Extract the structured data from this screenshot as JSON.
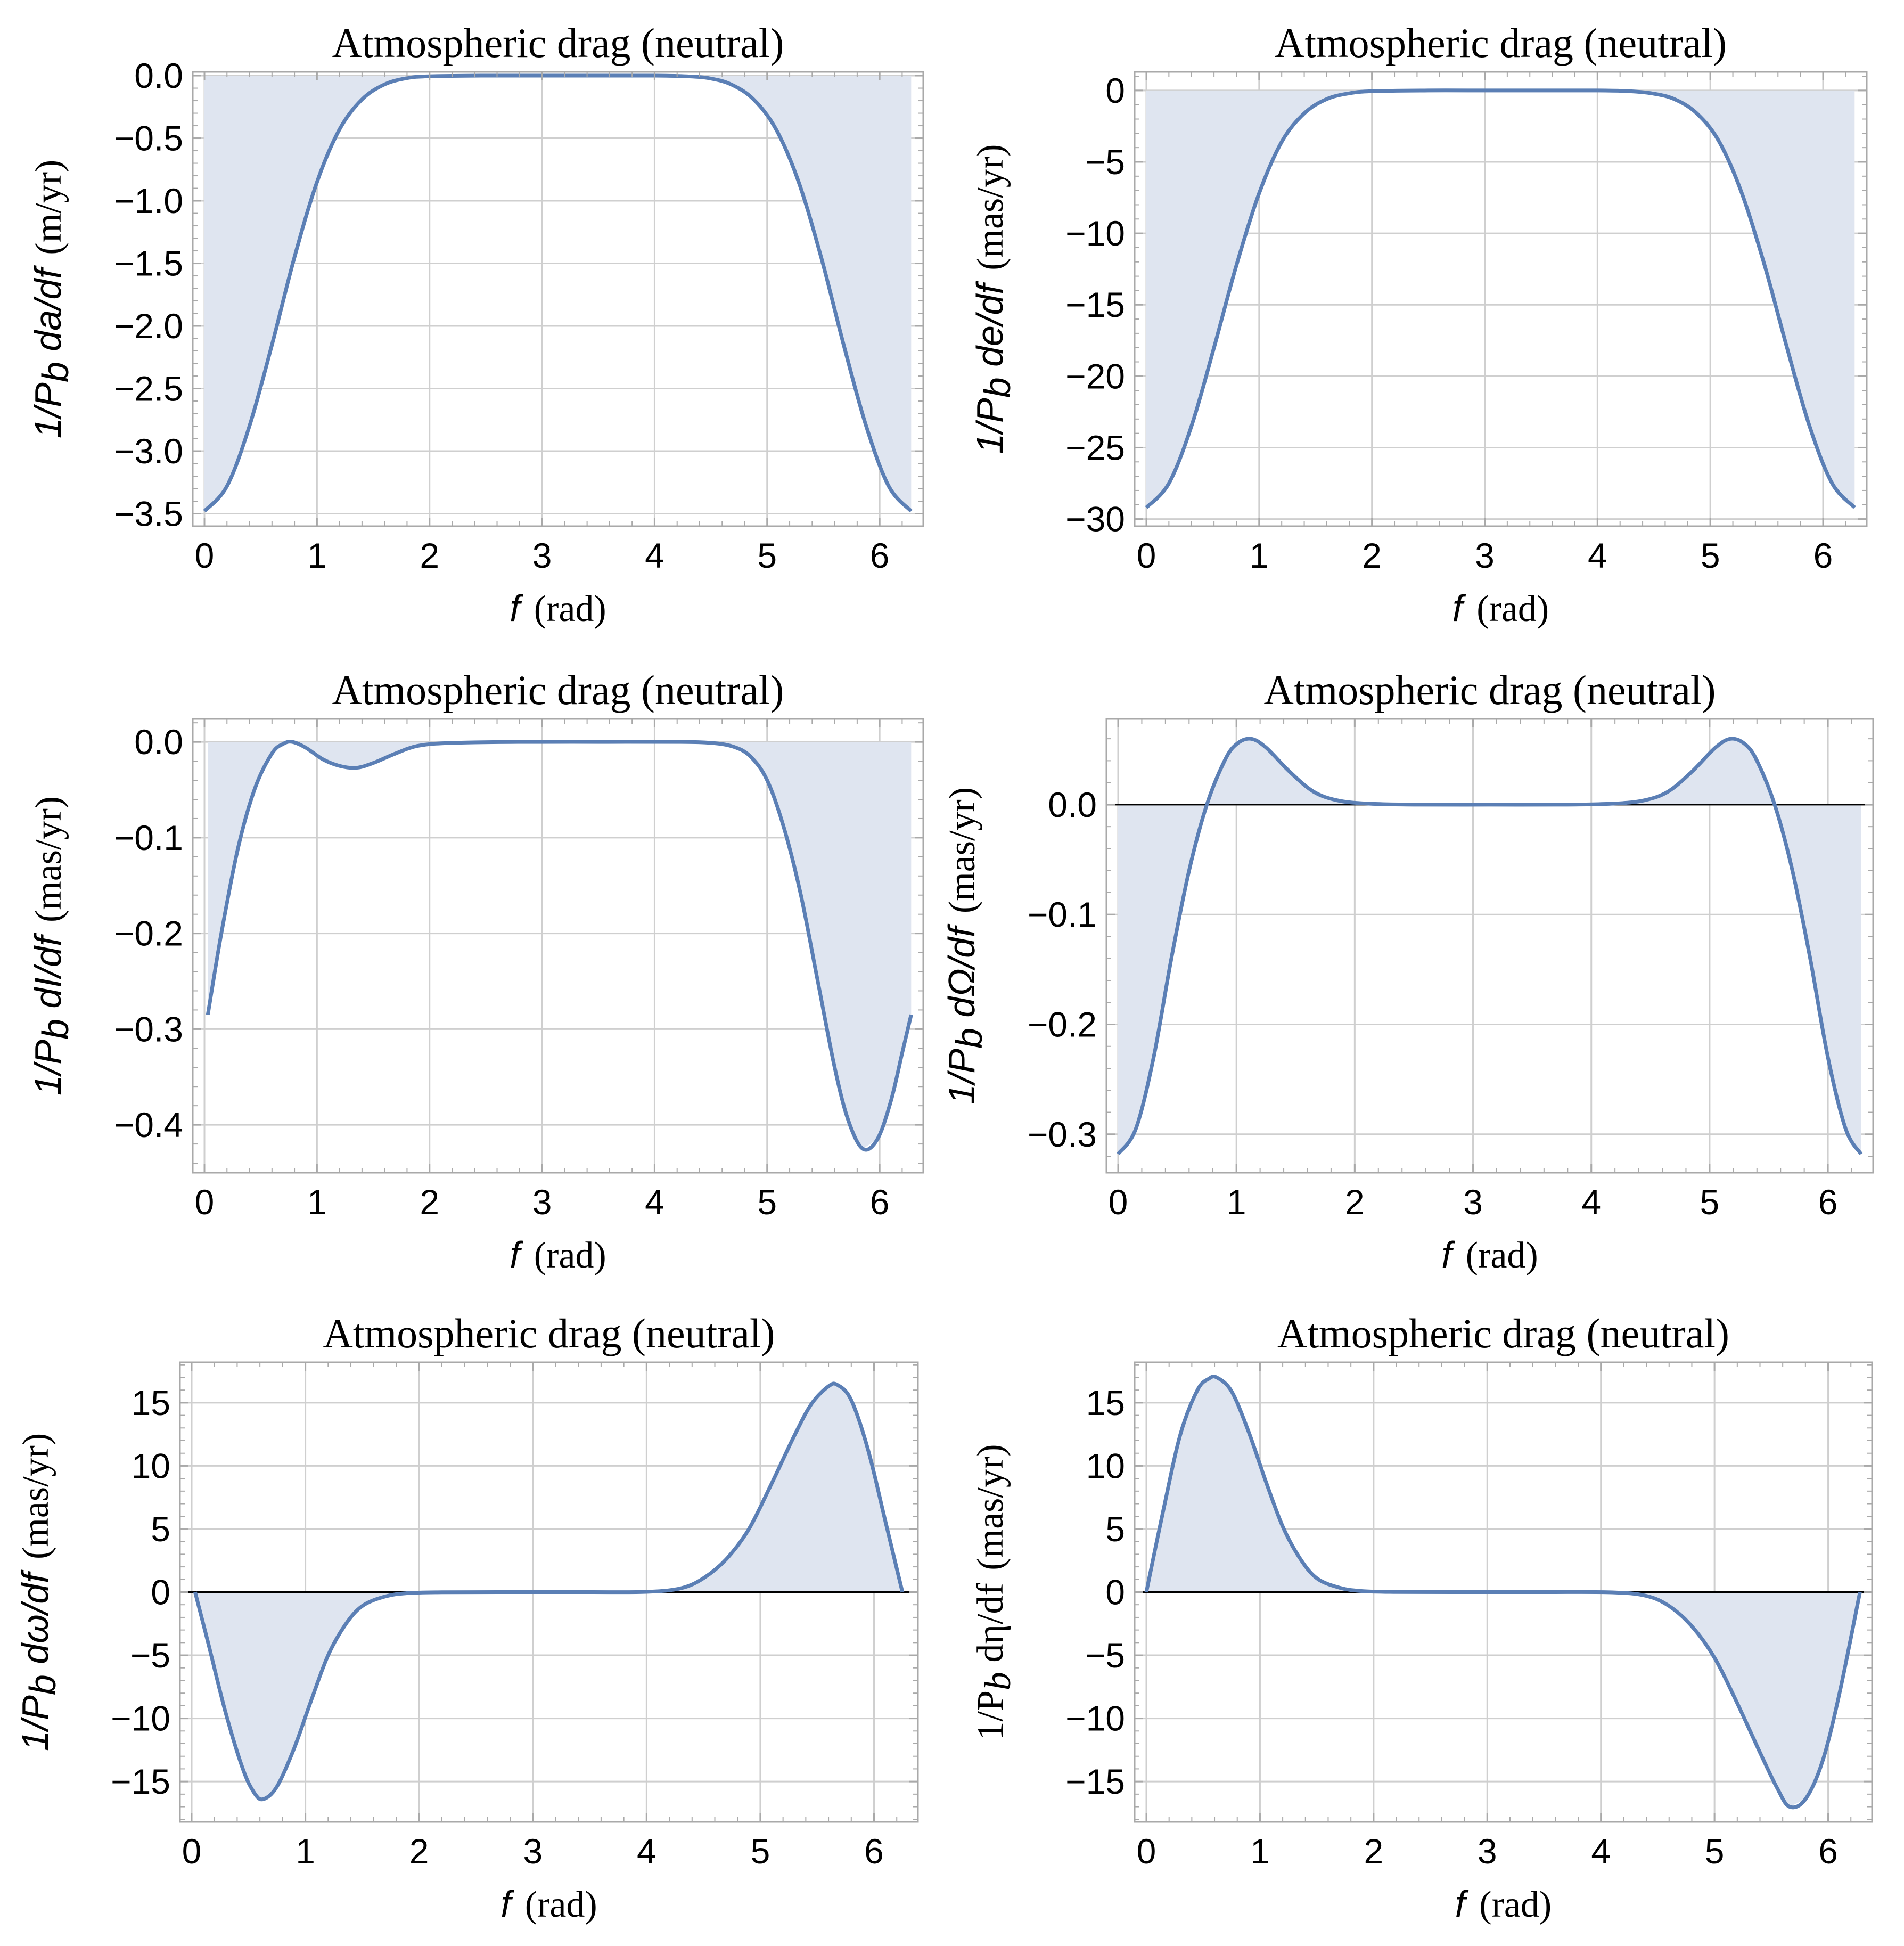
{
  "colors": {
    "curve": "#5b7fb5",
    "fill": "#dfe5f0",
    "grid": "#cfcfcf",
    "frame": "#a9a9a9"
  },
  "chart_data": [
    {
      "id": "da",
      "type": "line",
      "title": "Atmospheric drag (neutral)",
      "xlabel": {
        "var": "f",
        "unit": "(rad)"
      },
      "ylabel": {
        "pre": "1/P",
        "sub": "b",
        "mid": " da/df ",
        "unit": "(m/yr)",
        "style": "sans"
      },
      "xlim": [
        0,
        6.2832
      ],
      "ylim": [
        -3.6,
        0.03
      ],
      "xticks": [
        0,
        1,
        2,
        3,
        4,
        5,
        6
      ],
      "yticks": [
        0,
        -0.5,
        -1,
        -1.5,
        -2,
        -2.5,
        -3,
        -3.5
      ],
      "ytick_labels": [
        "0.0",
        "−0.5",
        "−1.0",
        "−1.5",
        "−2.0",
        "−2.5",
        "−3.0",
        "−3.5"
      ],
      "fill_to_axis": false,
      "x": [
        0,
        0.2,
        0.4,
        0.6,
        0.8,
        1.0,
        1.2,
        1.4,
        1.6,
        1.8,
        2.0,
        2.5,
        3.0,
        3.5,
        4.0,
        4.28,
        4.48,
        4.68,
        4.88,
        5.08,
        5.28,
        5.48,
        5.68,
        5.88,
        6.08,
        6.28
      ],
      "y": [
        -3.48,
        -3.28,
        -2.8,
        -2.15,
        -1.45,
        -0.85,
        -0.43,
        -0.19,
        -0.07,
        -0.02,
        -0.005,
        0,
        0,
        0,
        0,
        -0.005,
        -0.02,
        -0.07,
        -0.19,
        -0.43,
        -0.85,
        -1.45,
        -2.15,
        -2.8,
        -3.28,
        -3.48
      ]
    },
    {
      "id": "de",
      "type": "line",
      "title": "Atmospheric drag (neutral)",
      "xlabel": {
        "var": "f",
        "unit": "(rad)"
      },
      "ylabel": {
        "pre": "1/P",
        "sub": "b",
        "mid": " de/df ",
        "unit": "(mas/yr)",
        "style": "sans"
      },
      "xlim": [
        0,
        6.2832
      ],
      "ylim": [
        -30.5,
        1.3
      ],
      "xticks": [
        0,
        1,
        2,
        3,
        4,
        5,
        6
      ],
      "yticks": [
        0,
        -5,
        -10,
        -15,
        -20,
        -25,
        -30
      ],
      "ytick_labels": [
        "0",
        "−5",
        "−10",
        "−15",
        "−20",
        "−25",
        "−30"
      ],
      "fill_to_axis": false,
      "x": [
        0,
        0.2,
        0.4,
        0.6,
        0.8,
        1.0,
        1.2,
        1.4,
        1.6,
        1.8,
        2.0,
        2.5,
        3.0,
        3.5,
        4.0,
        4.28,
        4.48,
        4.68,
        4.88,
        5.08,
        5.28,
        5.48,
        5.68,
        5.88,
        6.08,
        6.28
      ],
      "y": [
        -29.2,
        -27.5,
        -23.5,
        -18.0,
        -12.2,
        -7.2,
        -3.6,
        -1.6,
        -0.6,
        -0.2,
        -0.05,
        0,
        0,
        0,
        0,
        -0.05,
        -0.2,
        -0.6,
        -1.6,
        -3.6,
        -7.2,
        -12.2,
        -18.0,
        -23.5,
        -27.5,
        -29.2
      ]
    },
    {
      "id": "dI",
      "type": "line",
      "title": "Atmospheric drag (neutral)",
      "xlabel": {
        "var": "f",
        "unit": "(rad)"
      },
      "ylabel": {
        "pre": "1/P",
        "sub": "b",
        "mid": " dI/df ",
        "unit": "(mas/yr)",
        "style": "sans"
      },
      "xlim": [
        0,
        6.2832
      ],
      "ylim": [
        -0.45,
        0.024
      ],
      "xticks": [
        0,
        1,
        2,
        3,
        4,
        5,
        6
      ],
      "yticks": [
        0,
        -0.1,
        -0.2,
        -0.3,
        -0.4
      ],
      "ytick_labels": [
        "0.0",
        "−0.1",
        "−0.2",
        "−0.3",
        "−0.4"
      ],
      "fill_to_axis": false,
      "x": [
        0.03,
        0.15,
        0.3,
        0.45,
        0.6,
        0.7,
        0.78,
        0.9,
        1.05,
        1.2,
        1.35,
        1.5,
        1.7,
        1.9,
        2.2,
        2.8,
        3.5,
        4.2,
        4.5,
        4.7,
        4.85,
        5.0,
        5.15,
        5.3,
        5.45,
        5.6,
        5.72,
        5.85,
        5.98,
        6.1,
        6.2,
        6.28
      ],
      "y": [
        -0.285,
        -0.2,
        -0.11,
        -0.048,
        -0.012,
        -0.002,
        0.0,
        -0.006,
        -0.018,
        -0.025,
        -0.027,
        -0.022,
        -0.012,
        -0.004,
        -0.001,
        0,
        0,
        0,
        -0.001,
        -0.005,
        -0.015,
        -0.04,
        -0.09,
        -0.16,
        -0.25,
        -0.34,
        -0.395,
        -0.425,
        -0.415,
        -0.375,
        -0.325,
        -0.285
      ]
    },
    {
      "id": "dOmega",
      "type": "line",
      "title": "Atmospheric drag (neutral)",
      "xlabel": {
        "var": "f",
        "unit": "(rad)"
      },
      "ylabel": {
        "pre": "1/P",
        "sub": "b",
        "mid": " dΩ/df ",
        "unit": "(mas/yr)",
        "style": "sans"
      },
      "xlim": [
        0,
        6.2832
      ],
      "ylim": [
        -0.335,
        0.078
      ],
      "xticks": [
        0,
        1,
        2,
        3,
        4,
        5,
        6
      ],
      "yticks": [
        0,
        -0.1,
        -0.2,
        -0.3
      ],
      "ytick_labels": [
        "0.0",
        "−0.1",
        "−0.2",
        "−0.3"
      ],
      "fill_to_axis": true,
      "x": [
        0,
        0.15,
        0.3,
        0.45,
        0.6,
        0.75,
        0.9,
        1.0,
        1.12,
        1.25,
        1.45,
        1.65,
        1.85,
        2.1,
        2.5,
        3.14,
        3.8,
        4.2,
        4.45,
        4.65,
        4.85,
        5.05,
        5.18,
        5.3,
        5.4,
        5.55,
        5.7,
        5.85,
        6.0,
        6.15,
        6.28
      ],
      "y": [
        -0.318,
        -0.295,
        -0.23,
        -0.14,
        -0.06,
        0.0,
        0.04,
        0.055,
        0.06,
        0.052,
        0.03,
        0.012,
        0.004,
        0.001,
        0,
        0,
        0,
        0.001,
        0.004,
        0.012,
        0.03,
        0.052,
        0.06,
        0.055,
        0.04,
        0.0,
        -0.06,
        -0.14,
        -0.23,
        -0.295,
        -0.318
      ]
    },
    {
      "id": "domega",
      "type": "line",
      "title": "Atmospheric drag (neutral)",
      "xlabel": {
        "var": "f",
        "unit": "(rad)"
      },
      "ylabel": {
        "pre": "1/P",
        "sub": "b",
        "mid": " dω/df ",
        "unit": "(mas/yr)",
        "style": "sans"
      },
      "xlim": [
        0,
        6.2832
      ],
      "ylim": [
        -18.2,
        18.2
      ],
      "xticks": [
        0,
        1,
        2,
        3,
        4,
        5,
        6
      ],
      "yticks": [
        15,
        10,
        5,
        0,
        -5,
        -10,
        -15
      ],
      "ytick_labels": [
        "15",
        "10",
        "5",
        "0",
        "−5",
        "−10",
        "−15"
      ],
      "fill_to_axis": true,
      "x": [
        0.03,
        0.15,
        0.3,
        0.45,
        0.55,
        0.63,
        0.75,
        0.9,
        1.05,
        1.2,
        1.35,
        1.5,
        1.7,
        1.9,
        2.2,
        2.8,
        3.5,
        4.0,
        4.3,
        4.5,
        4.7,
        4.9,
        5.1,
        5.3,
        5.45,
        5.6,
        5.68,
        5.8,
        5.95,
        6.1,
        6.25
      ],
      "y": [
        0,
        -4.2,
        -9.6,
        -14.0,
        -15.9,
        -16.4,
        -15.4,
        -12.4,
        -8.6,
        -5.0,
        -2.6,
        -1.1,
        -0.35,
        -0.08,
        -0.01,
        0,
        0,
        0.02,
        0.3,
        1.1,
        2.6,
        5.0,
        8.6,
        12.4,
        14.9,
        16.3,
        16.4,
        15.2,
        11.2,
        5.6,
        0
      ]
    },
    {
      "id": "deta",
      "type": "line",
      "title": "Atmospheric drag (neutral)",
      "xlabel": {
        "var": "f",
        "unit": "(rad)"
      },
      "ylabel": {
        "pre": "1/P",
        "sub": "b",
        "mid": " dη/df ",
        "unit": "(mas/yr)",
        "style": "serif"
      },
      "xlim": [
        0,
        6.2832
      ],
      "ylim": [
        -18.2,
        18.2
      ],
      "xticks": [
        0,
        1,
        2,
        3,
        4,
        5,
        6
      ],
      "yticks": [
        15,
        10,
        5,
        0,
        -5,
        -10,
        -15
      ],
      "ytick_labels": [
        "15",
        "10",
        "5",
        "0",
        "−5",
        "−10",
        "−15"
      ],
      "fill_to_axis": true,
      "x": [
        0,
        0.15,
        0.3,
        0.45,
        0.55,
        0.62,
        0.75,
        0.9,
        1.05,
        1.2,
        1.35,
        1.5,
        1.7,
        1.9,
        2.2,
        2.8,
        3.5,
        4.1,
        4.4,
        4.6,
        4.8,
        5.0,
        5.2,
        5.4,
        5.55,
        5.66,
        5.8,
        5.95,
        6.1,
        6.28
      ],
      "y": [
        0,
        6.5,
        12.5,
        16.0,
        16.9,
        17.0,
        15.9,
        12.7,
        8.8,
        5.2,
        2.7,
        1.1,
        0.35,
        0.08,
        0.01,
        0,
        0,
        -0.02,
        -0.3,
        -1.1,
        -2.7,
        -5.2,
        -8.8,
        -12.7,
        -15.5,
        -17.0,
        -16.4,
        -13.4,
        -8.0,
        0
      ]
    }
  ]
}
